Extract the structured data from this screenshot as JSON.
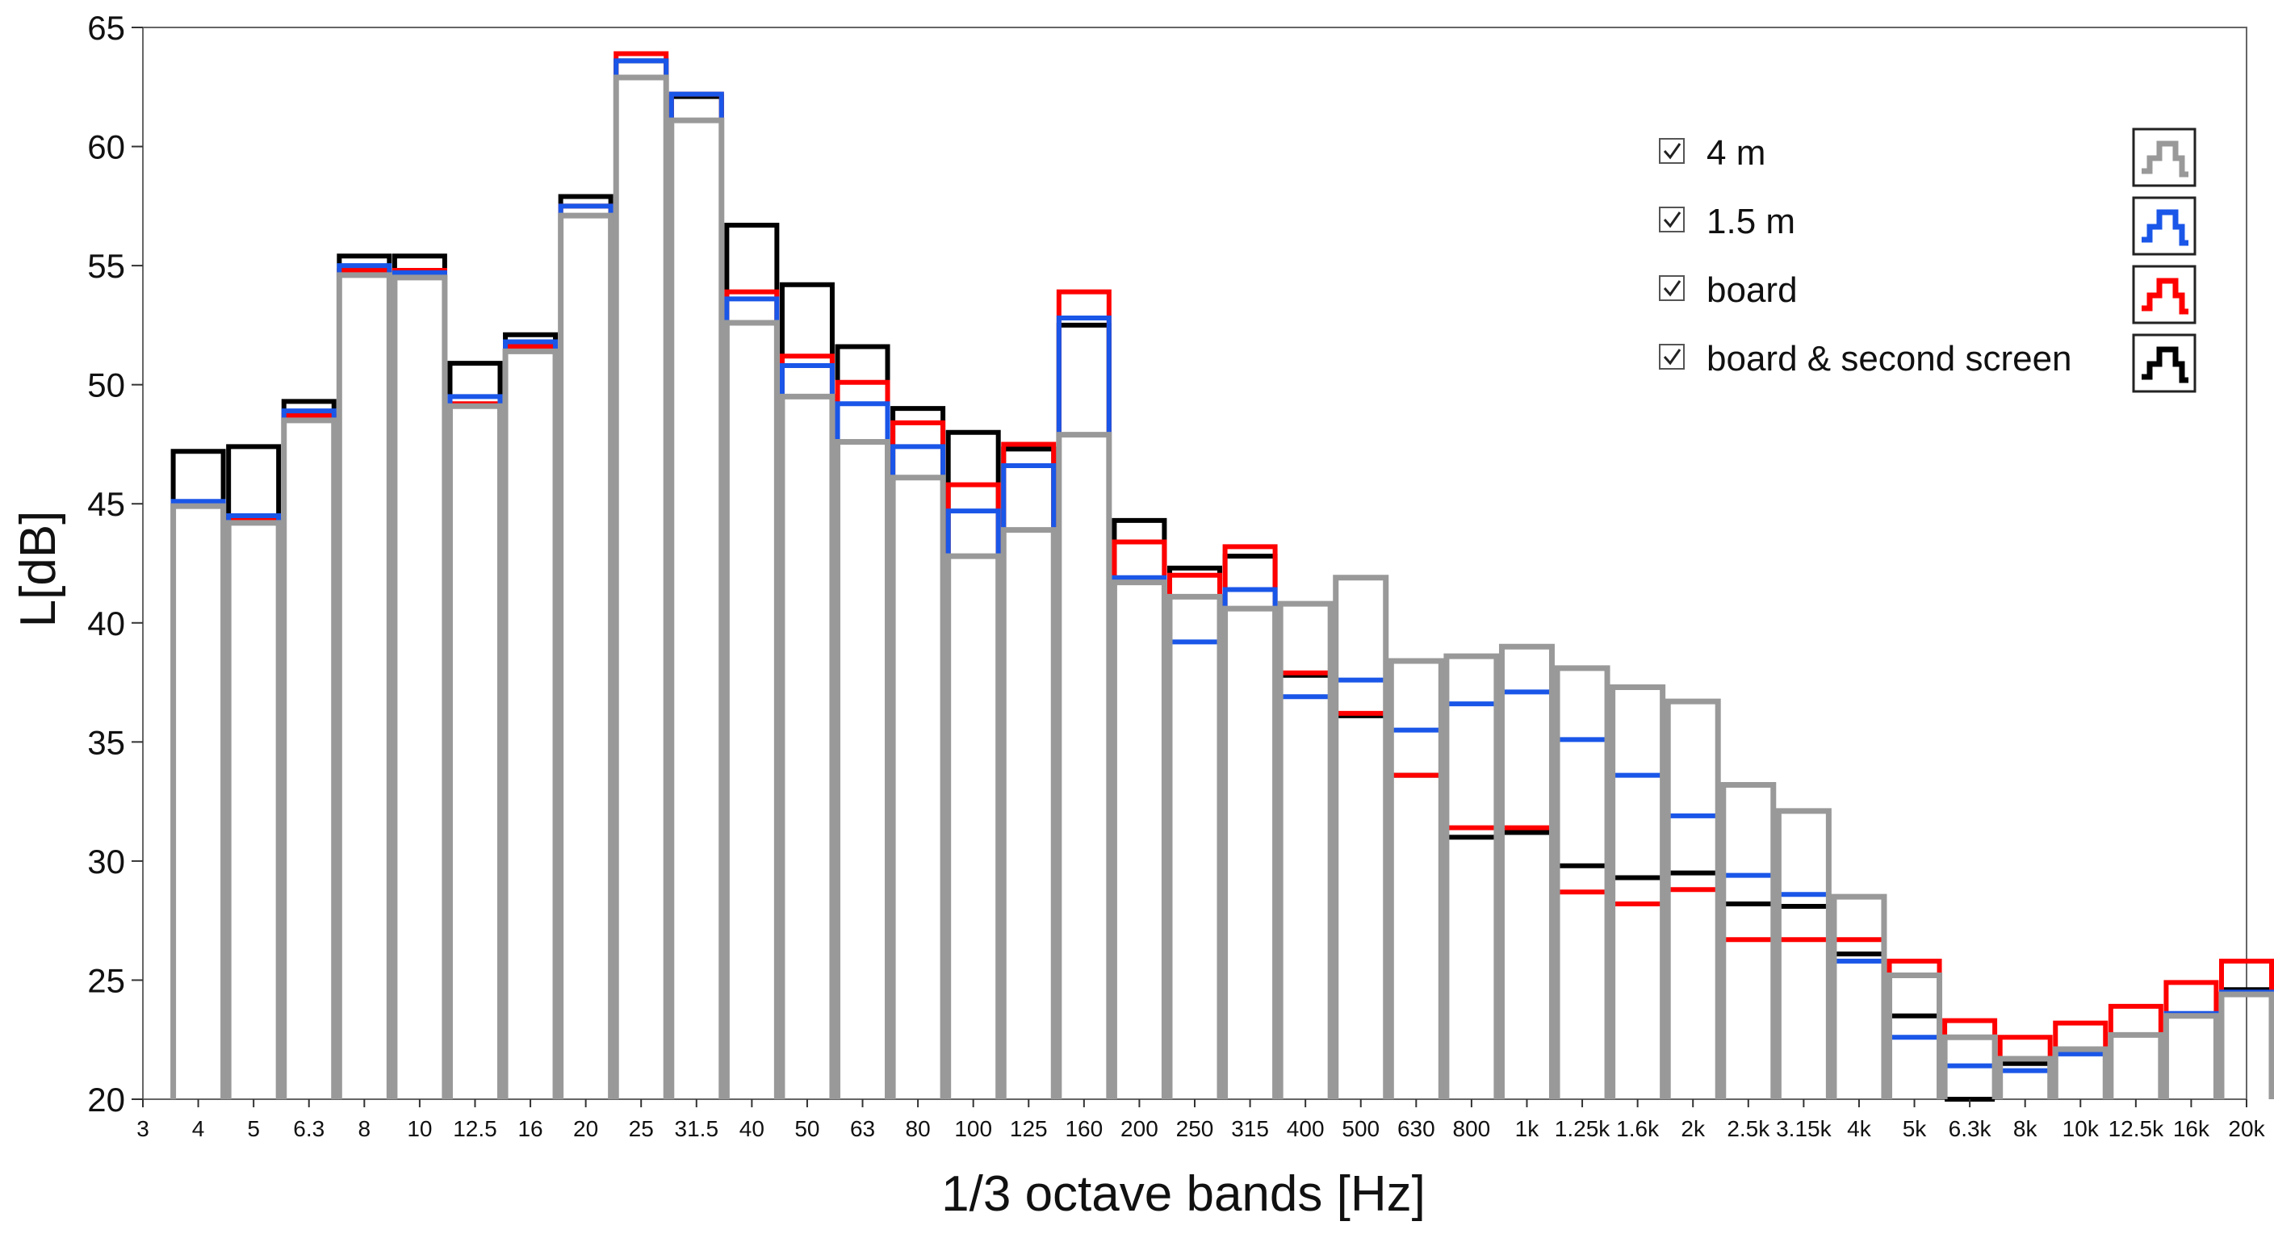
{
  "chart_data": {
    "type": "bar",
    "title": "",
    "xlabel": "1/3 octave bands [Hz]",
    "ylabel": "L[dB]",
    "ylim": [
      20,
      65
    ],
    "yticks": [
      20,
      25,
      30,
      35,
      40,
      45,
      50,
      55,
      60,
      65
    ],
    "x_tick_labels": [
      "3",
      "4",
      "5",
      "6.3",
      "8",
      "10",
      "12.5",
      "16",
      "20",
      "25",
      "31.5",
      "40",
      "50",
      "63",
      "80",
      "100",
      "125",
      "160",
      "200",
      "250",
      "315",
      "400",
      "500",
      "630",
      "800",
      "1k",
      "1.25k",
      "1.6k",
      "2k",
      "2.5k",
      "3.15k",
      "4k",
      "5k",
      "6.3k",
      "8k",
      "10k",
      "12.5k",
      "16k",
      "20k"
    ],
    "categories": [
      "4",
      "5",
      "6.3",
      "8",
      "10",
      "12.5",
      "16",
      "20",
      "25",
      "31.5",
      "40",
      "50",
      "63",
      "80",
      "100",
      "125",
      "160",
      "200",
      "250",
      "315",
      "400",
      "500",
      "630",
      "800",
      "1k",
      "1.25k",
      "1.6k",
      "2k",
      "2.5k",
      "3.15k",
      "4k",
      "5k",
      "6.3k",
      "8k",
      "10k",
      "12.5k",
      "16k",
      "20k"
    ],
    "series": [
      {
        "name": "board & second screen",
        "color": "#000000",
        "values": [
          47.2,
          47.4,
          49.3,
          55.4,
          55.4,
          50.9,
          52.1,
          57.9,
          63.6,
          62.1,
          56.7,
          54.2,
          51.6,
          49.0,
          48.0,
          47.3,
          52.5,
          44.3,
          42.3,
          42.8,
          37.8,
          36.1,
          33.6,
          31.0,
          31.2,
          29.8,
          29.3,
          29.5,
          28.2,
          28.1,
          26.1,
          23.5,
          20.0,
          21.5,
          22.0,
          22.7,
          23.5,
          24.6
        ]
      },
      {
        "name": "board",
        "color": "#ff0000",
        "values": [
          45.0,
          44.3,
          48.7,
          54.8,
          54.8,
          49.2,
          51.6,
          57.5,
          63.9,
          62.2,
          53.9,
          51.2,
          50.1,
          48.4,
          45.8,
          47.5,
          53.9,
          43.4,
          42.0,
          43.2,
          37.9,
          36.2,
          33.6,
          31.4,
          31.4,
          28.7,
          28.2,
          28.8,
          26.7,
          26.7,
          26.7,
          25.8,
          23.3,
          22.6,
          23.2,
          23.9,
          24.9,
          25.8
        ]
      },
      {
        "name": "1.5 m",
        "color": "#1a56e8",
        "values": [
          45.1,
          44.5,
          48.9,
          55.0,
          54.7,
          49.5,
          51.8,
          57.5,
          63.6,
          62.2,
          53.6,
          50.8,
          49.2,
          47.4,
          44.7,
          46.6,
          52.8,
          41.9,
          39.2,
          41.4,
          36.9,
          37.6,
          35.5,
          36.6,
          37.1,
          35.1,
          33.6,
          31.9,
          29.4,
          28.6,
          25.8,
          22.6,
          21.4,
          21.2,
          21.9,
          22.7,
          23.6,
          24.5
        ]
      },
      {
        "name": "4 m",
        "color": "#999999",
        "values": [
          44.9,
          44.2,
          48.5,
          54.6,
          54.5,
          49.1,
          51.4,
          57.1,
          62.9,
          61.1,
          52.6,
          49.5,
          47.6,
          46.1,
          42.8,
          43.9,
          47.9,
          41.7,
          41.1,
          40.6,
          40.8,
          41.9,
          38.4,
          38.6,
          39.0,
          38.1,
          37.3,
          36.7,
          33.2,
          32.1,
          28.5,
          25.2,
          22.6,
          21.7,
          22.1,
          22.7,
          23.5,
          24.4
        ]
      }
    ],
    "legend": {
      "placement": "top-right",
      "entries": [
        {
          "label": "4 m",
          "checked": true,
          "color": "#999999"
        },
        {
          "label": "1.5 m",
          "checked": true,
          "color": "#1a56e8"
        },
        {
          "label": "board",
          "checked": true,
          "color": "#ff0000"
        },
        {
          "label": "board & second screen",
          "checked": true,
          "color": "#000000"
        }
      ]
    },
    "grid": false
  }
}
